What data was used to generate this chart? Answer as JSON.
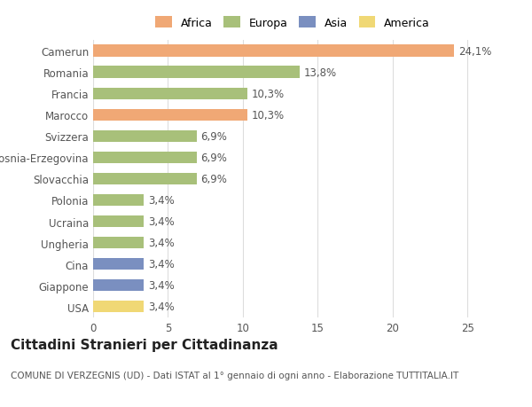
{
  "countries": [
    "Camerun",
    "Romania",
    "Francia",
    "Marocco",
    "Svizzera",
    "Bosnia-Erzegovina",
    "Slovacchia",
    "Polonia",
    "Ucraina",
    "Ungheria",
    "Cina",
    "Giappone",
    "USA"
  ],
  "values": [
    24.1,
    13.8,
    10.3,
    10.3,
    6.9,
    6.9,
    6.9,
    3.4,
    3.4,
    3.4,
    3.4,
    3.4,
    3.4
  ],
  "labels": [
    "24,1%",
    "13,8%",
    "10,3%",
    "10,3%",
    "6,9%",
    "6,9%",
    "6,9%",
    "3,4%",
    "3,4%",
    "3,4%",
    "3,4%",
    "3,4%",
    "3,4%"
  ],
  "colors": [
    "#F0A875",
    "#A8C07A",
    "#A8C07A",
    "#F0A875",
    "#A8C07A",
    "#A8C07A",
    "#A8C07A",
    "#A8C07A",
    "#A8C07A",
    "#A8C07A",
    "#7A8FC0",
    "#7A8FC0",
    "#F0D875"
  ],
  "legend_labels": [
    "Africa",
    "Europa",
    "Asia",
    "America"
  ],
  "legend_colors": [
    "#F0A875",
    "#A8C07A",
    "#7A8FC0",
    "#F0D875"
  ],
  "xlim": [
    0,
    27
  ],
  "xticks": [
    0,
    5,
    10,
    15,
    20,
    25
  ],
  "title": "Cittadini Stranieri per Cittadinanza",
  "subtitle": "COMUNE DI VERZEGNIS (UD) - Dati ISTAT al 1° gennaio di ogni anno - Elaborazione TUTTITALIA.IT",
  "bg_color": "#ffffff",
  "bar_height": 0.55,
  "label_fontsize": 8.5,
  "tick_fontsize": 8.5,
  "title_fontsize": 11,
  "subtitle_fontsize": 7.5,
  "grid_color": "#dddddd",
  "text_color": "#555555",
  "title_color": "#222222"
}
